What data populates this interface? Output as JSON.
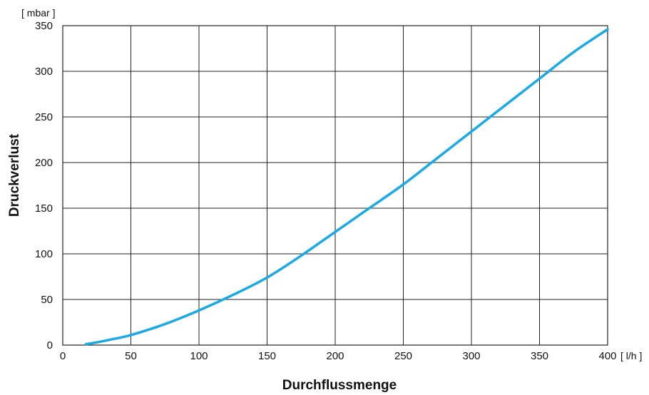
{
  "chart_data": {
    "type": "line",
    "title": "",
    "xlabel": "Durchflussmenge",
    "ylabel": "Druckverlust",
    "x_unit": "[ l/h ]",
    "y_unit": "[ mbar ]",
    "xlim": [
      0,
      400
    ],
    "ylim": [
      0,
      350
    ],
    "x_ticks": [
      "0",
      "50",
      "100",
      "150",
      "200",
      "250",
      "300",
      "350",
      "400"
    ],
    "y_ticks": [
      "0",
      "50",
      "100",
      "150",
      "200",
      "250",
      "300",
      "350"
    ],
    "grid": true,
    "series": [
      {
        "color": "#19a9e6",
        "x": [
          17,
          25,
          35,
          50,
          75,
          100,
          125,
          150,
          175,
          200,
          225,
          250,
          275,
          300,
          325,
          350,
          375,
          400
        ],
        "y": [
          1,
          3,
          6,
          11,
          23,
          38,
          55,
          74,
          98,
          124,
          150,
          176,
          205,
          234,
          263,
          292,
          321,
          346
        ]
      }
    ]
  }
}
